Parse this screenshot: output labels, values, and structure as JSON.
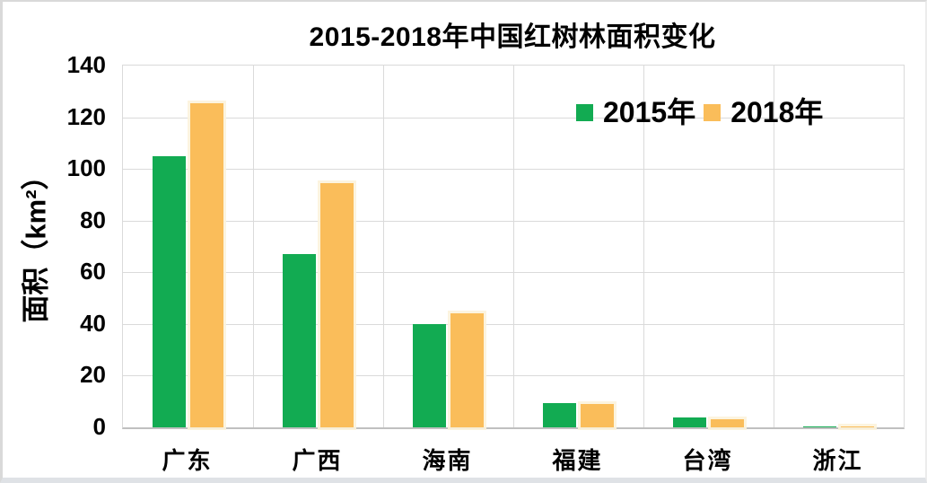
{
  "chart_data": {
    "type": "bar",
    "title": "2015-2018年中国红树林面积变化",
    "xlabel": "",
    "ylabel": "面积（km²）",
    "categories": [
      "广东",
      "广西",
      "海南",
      "福建",
      "台湾",
      "浙江"
    ],
    "series": [
      {
        "name": "2015年",
        "color": "#12AB52",
        "values": [
          105,
          67,
          40,
          9.5,
          4,
          0.2
        ]
      },
      {
        "name": "2018年",
        "color": "#FABD5A",
        "values": [
          125.5,
          94.5,
          44,
          9,
          3,
          0.5
        ]
      }
    ],
    "ylim": [
      0,
      140
    ],
    "ytick_step": 20,
    "yticks": [
      0,
      20,
      40,
      60,
      80,
      100,
      120,
      140
    ],
    "grid": "horizontal-and-vertical",
    "gridline_color": "#dadada",
    "legend_position": "inside-top-right",
    "text_color": "#000000",
    "background_color": "#ffffff"
  }
}
